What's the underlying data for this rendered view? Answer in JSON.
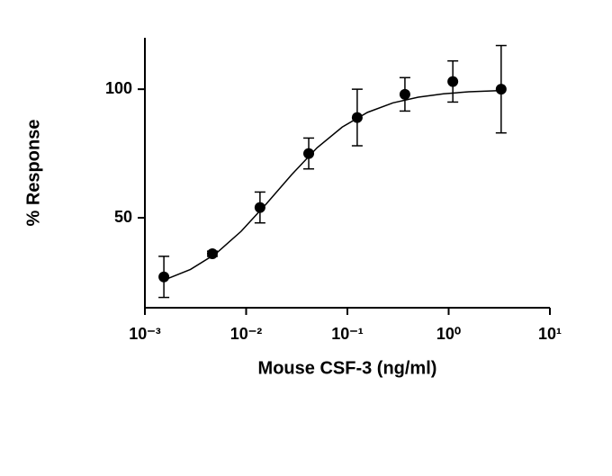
{
  "chart_data": {
    "type": "scatter",
    "xscale": "log",
    "x_label": "Mouse CSF-3 (ng/ml)",
    "y_label": "% Response",
    "x": [
      0.00154,
      0.00464,
      0.0137,
      0.0415,
      0.125,
      0.37,
      1.1,
      3.3
    ],
    "values": [
      27,
      36,
      54,
      75,
      89,
      98,
      103,
      100
    ],
    "errors": [
      8,
      1,
      6,
      6,
      11,
      6.5,
      8,
      17
    ],
    "fit": {
      "x": [
        0.00158,
        0.00282,
        0.00501,
        0.00891,
        0.0158,
        0.0282,
        0.0501,
        0.0891,
        0.158,
        0.282,
        0.501,
        0.891,
        1.58,
        3.31
      ],
      "values": [
        25.9,
        29.9,
        36.0,
        44.7,
        55.4,
        66.8,
        77.2,
        85.3,
        91.0,
        94.7,
        96.9,
        98.2,
        99.0,
        99.5
      ]
    },
    "color": "#000000",
    "xlim": [
      0.001,
      10
    ],
    "xticks": [
      {
        "value": 0.001,
        "label": "10⁻³"
      },
      {
        "value": 0.01,
        "label": "10⁻²"
      },
      {
        "value": 0.1,
        "label": "10⁻¹"
      },
      {
        "value": 1,
        "label": "10⁰"
      },
      {
        "value": 10,
        "label": "10¹"
      }
    ],
    "ylim": [
      15,
      120
    ],
    "yticks": [
      50,
      100
    ],
    "grid": false
  }
}
